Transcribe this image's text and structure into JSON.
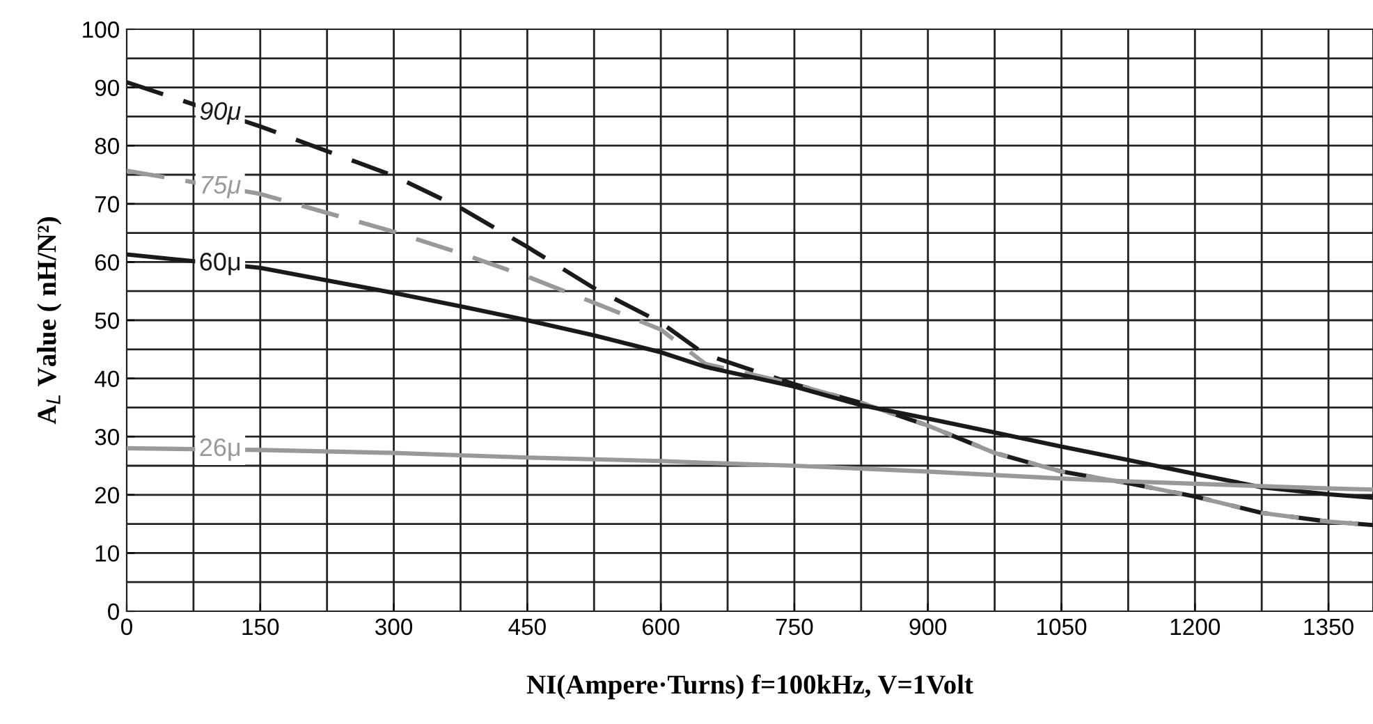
{
  "chart_data": {
    "type": "line",
    "xlabel": "NI(Ampere·Turns) f=100kHz, V=1Volt",
    "ylabel": "A$_{L}$ Value ( nH/N²)",
    "x": [
      0,
      150,
      300,
      375,
      450,
      525,
      600,
      650,
      750,
      825,
      900,
      975,
      1050,
      1125,
      1200,
      1275,
      1350,
      1400
    ],
    "series": [
      {
        "name": "90μ",
        "color": "#1a1a1a",
        "line_style": "dashed",
        "values": [
          90.9,
          83.3,
          74.8,
          69.3,
          62.6,
          55.5,
          49.6,
          44.1,
          39.0,
          35.8,
          31.9,
          27.2,
          24.0,
          22.0,
          19.7,
          16.9,
          15.4,
          14.8
        ]
      },
      {
        "name": "75μ",
        "color": "#999999",
        "line_style": "dashed",
        "values": [
          75.7,
          71.7,
          65.2,
          61.5,
          57.5,
          53.0,
          48.4,
          42.5,
          39.0,
          35.8,
          31.9,
          27.2,
          24.0,
          22.0,
          19.7,
          16.9,
          15.4,
          14.8
        ]
      },
      {
        "name": "60μ",
        "color": "#1a1a1a",
        "line_style": "solid",
        "values": [
          61.3,
          59.0,
          54.7,
          52.4,
          50.0,
          47.4,
          44.5,
          42.0,
          38.6,
          35.4,
          33.1,
          30.7,
          28.3,
          26.0,
          23.6,
          21.3,
          20.1,
          19.5
        ]
      },
      {
        "name": "26μ",
        "color": "#999999",
        "line_style": "solid",
        "values": [
          28.0,
          27.7,
          27.2,
          26.8,
          26.4,
          26.1,
          25.8,
          25.5,
          25.0,
          24.5,
          24.0,
          23.4,
          22.8,
          22.3,
          21.9,
          21.5,
          21.1,
          20.9
        ]
      }
    ],
    "xlim": [
      0,
      1400
    ],
    "ylim": [
      0,
      100
    ],
    "xticks": [
      0,
      150,
      300,
      450,
      600,
      750,
      900,
      1050,
      1200,
      1350
    ],
    "yticks": [
      0,
      10,
      20,
      30,
      40,
      50,
      60,
      70,
      80,
      90,
      100
    ],
    "grid": true
  }
}
